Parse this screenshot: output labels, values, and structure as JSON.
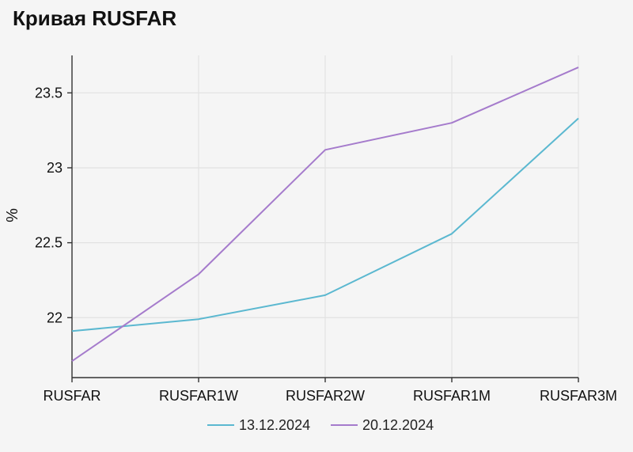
{
  "title": "Кривая RUSFAR",
  "chart_data": {
    "type": "line",
    "title": "Кривая RUSFAR",
    "xlabel": "",
    "ylabel": "%",
    "categories": [
      "RUSFAR",
      "RUSFAR1W",
      "RUSFAR2W",
      "RUSFAR1M",
      "RUSFAR3M"
    ],
    "ylim": [
      21.6,
      23.75
    ],
    "yticks": [
      "22",
      "22.5",
      "23",
      "23.5"
    ],
    "ytick_values": [
      22,
      22.5,
      23,
      23.5
    ],
    "grid": true,
    "legend_position": "bottom",
    "series": [
      {
        "name": "13.12.2024",
        "color": "#5bb8d0",
        "values": [
          21.91,
          21.99,
          22.15,
          22.56,
          23.33
        ]
      },
      {
        "name": "20.12.2024",
        "color": "#a57bcc",
        "values": [
          21.71,
          22.29,
          23.12,
          23.3,
          23.67
        ]
      }
    ]
  }
}
